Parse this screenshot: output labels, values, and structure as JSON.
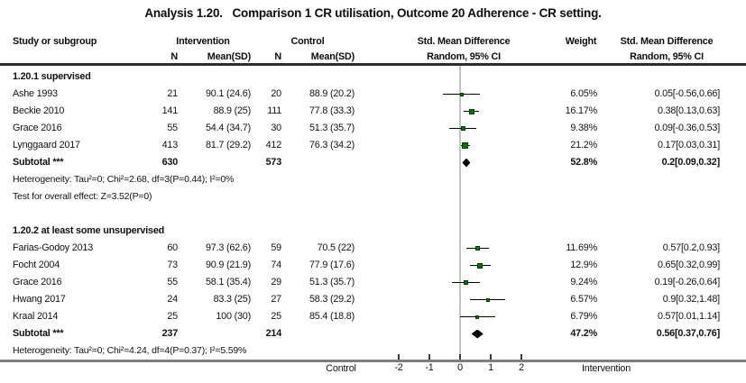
{
  "colors": {
    "marker_fill": "#067306",
    "marker_border": "#003b00",
    "ci_line": "#000000",
    "diamond": "#000000",
    "zero_line": "#c3c3c3",
    "header_rule": "#2e2e2e",
    "bottom_rule": "#7e7e7e",
    "text": "#111111"
  },
  "columns": {
    "study": "Study or subgroup",
    "intervention_group": "Intervention",
    "control_group": "Control",
    "n": "N",
    "mean_sd": "Mean(SD)",
    "smd_plot": "Std. Mean Difference",
    "smd_plot_sub": "Random, 95% CI",
    "weight": "Weight",
    "smd_text": "Std. Mean Difference",
    "smd_text_sub": "Random, 95% CI"
  },
  "chart_data": {
    "type": "forest",
    "title": "Analysis 1.20.   Comparison 1 CR utilisation, Outcome 20 Adherence - CR setting.",
    "effect_measure": "Std. Mean Difference",
    "model": "Random, 95% CI",
    "x_axis": {
      "ticks": [
        -2,
        -1,
        0,
        1,
        2
      ],
      "min": -2,
      "max": 2,
      "left_label": "Control",
      "right_label": "Intervention"
    },
    "subgroups": [
      {
        "label": "1.20.1 supervised",
        "studies": [
          {
            "study": "Ashe 1993",
            "int_n": "21",
            "int_mean_sd": "90.1 (24.6)",
            "ctl_n": "20",
            "ctl_mean_sd": "88.9 (20.2)",
            "weight": "6.05%",
            "weight_pct": 6.05,
            "smd_text": "0.05[-0.56,0.66]",
            "est": 0.05,
            "lo": -0.56,
            "hi": 0.66
          },
          {
            "study": "Beckie 2010",
            "int_n": "141",
            "int_mean_sd": "88.9 (25)",
            "ctl_n": "111",
            "ctl_mean_sd": "77.8 (33.3)",
            "weight": "16.17%",
            "weight_pct": 16.17,
            "smd_text": "0.38[0.13,0.63]",
            "est": 0.38,
            "lo": 0.13,
            "hi": 0.63
          },
          {
            "study": "Grace 2016",
            "int_n": "55",
            "int_mean_sd": "54.4 (34.7)",
            "ctl_n": "30",
            "ctl_mean_sd": "51.3 (35.7)",
            "weight": "9.38%",
            "weight_pct": 9.38,
            "smd_text": "0.09[-0.36,0.53]",
            "est": 0.09,
            "lo": -0.36,
            "hi": 0.53
          },
          {
            "study": "Lynggaard 2017",
            "int_n": "413",
            "int_mean_sd": "81.7 (29.2)",
            "ctl_n": "412",
            "ctl_mean_sd": "76.3 (34.2)",
            "weight": "21.2%",
            "weight_pct": 21.2,
            "smd_text": "0.17[0.03,0.31]",
            "est": 0.17,
            "lo": 0.03,
            "hi": 0.31
          }
        ],
        "subtotal": {
          "study": "Subtotal ***",
          "int_n": "630",
          "ctl_n": "573",
          "weight": "52.8%",
          "smd_text": "0.2[0.09,0.32]",
          "est": 0.2,
          "lo": 0.09,
          "hi": 0.32
        },
        "heterogeneity": "Heterogeneity: Tau²=0; Chi²=2.68, df=3(P=0.44); I²=0%",
        "overall_effect": "Test for overall effect: Z=3.52(P=0)"
      },
      {
        "label": "1.20.2 at least some unsupervised",
        "studies": [
          {
            "study": "Farias-Godoy 2013",
            "int_n": "60",
            "int_mean_sd": "97.3 (62.6)",
            "ctl_n": "59",
            "ctl_mean_sd": "70.5 (22)",
            "weight": "11.69%",
            "weight_pct": 11.69,
            "smd_text": "0.57[0.2,0.93]",
            "est": 0.57,
            "lo": 0.2,
            "hi": 0.93
          },
          {
            "study": "Focht 2004",
            "int_n": "73",
            "int_mean_sd": "90.9 (21.9)",
            "ctl_n": "74",
            "ctl_mean_sd": "77.9 (17.6)",
            "weight": "12.9%",
            "weight_pct": 12.9,
            "smd_text": "0.65[0.32,0.99]",
            "est": 0.65,
            "lo": 0.32,
            "hi": 0.99
          },
          {
            "study": "Grace 2016",
            "int_n": "55",
            "int_mean_sd": "58.1 (35.4)",
            "ctl_n": "29",
            "ctl_mean_sd": "51.3 (35.7)",
            "weight": "9.24%",
            "weight_pct": 9.24,
            "smd_text": "0.19[-0.26,0.64]",
            "est": 0.19,
            "lo": -0.26,
            "hi": 0.64
          },
          {
            "study": "Hwang 2017",
            "int_n": "24",
            "int_mean_sd": "83.3 (25)",
            "ctl_n": "27",
            "ctl_mean_sd": "58.3 (29.2)",
            "weight": "6.57%",
            "weight_pct": 6.57,
            "smd_text": "0.9[0.32,1.48]",
            "est": 0.9,
            "lo": 0.32,
            "hi": 1.48
          },
          {
            "study": "Kraal 2014",
            "int_n": "25",
            "int_mean_sd": "100 (30)",
            "ctl_n": "25",
            "ctl_mean_sd": "85.4 (18.8)",
            "weight": "6.79%",
            "weight_pct": 6.79,
            "smd_text": "0.57[0.01,1.14]",
            "est": 0.57,
            "lo": 0.01,
            "hi": 1.14
          }
        ],
        "subtotal": {
          "study": "Subtotal ***",
          "int_n": "237",
          "ctl_n": "214",
          "weight": "47.2%",
          "smd_text": "0.56[0.37,0.76]",
          "est": 0.56,
          "lo": 0.37,
          "hi": 0.76
        },
        "heterogeneity": "Heterogeneity: Tau²=0; Chi²=4.24, df=4(P=0.37); I²=5.59%",
        "overall_effect": null
      }
    ]
  }
}
